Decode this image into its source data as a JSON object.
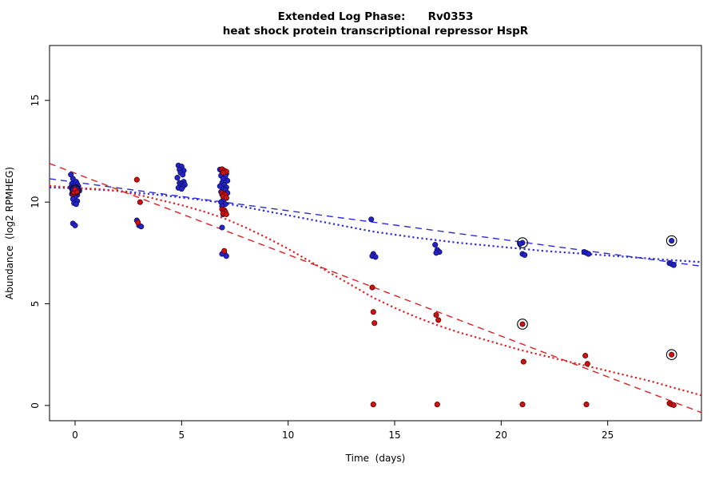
{
  "title": {
    "line1": "Extended Log Phase:      Rv0353",
    "line2": "heat shock protein transcriptional repressor HspR"
  },
  "chart_data": {
    "type": "scatter",
    "xlabel": "Time  (days)",
    "ylabel": "Abundance  (log2 RPMHEG)",
    "xlim": [
      -1.2,
      29.4
    ],
    "ylim": [
      -0.75,
      17.7
    ],
    "x_ticks": [
      0,
      5,
      10,
      15,
      20,
      25
    ],
    "y_ticks": [
      0,
      5,
      10,
      15
    ],
    "grid": false,
    "legend": "none",
    "series": [
      {
        "name": "blue-series",
        "color": "#2424cc",
        "edge": "#10106a",
        "points": [
          [
            -0.2,
            11.35
          ],
          [
            -0.1,
            11.15
          ],
          [
            0.05,
            11.0
          ],
          [
            -0.15,
            10.9
          ],
          [
            0.1,
            10.88
          ],
          [
            -0.05,
            10.82
          ],
          [
            0.15,
            10.78
          ],
          [
            -0.2,
            10.72
          ],
          [
            0.0,
            10.7
          ],
          [
            0.1,
            10.65
          ],
          [
            -0.1,
            10.6
          ],
          [
            0.2,
            10.55
          ],
          [
            -0.05,
            10.5
          ],
          [
            0.05,
            10.45
          ],
          [
            -0.15,
            10.4
          ],
          [
            0.1,
            10.35
          ],
          [
            0.0,
            10.25
          ],
          [
            -0.1,
            10.15
          ],
          [
            0.1,
            10.05
          ],
          [
            -0.05,
            9.95
          ],
          [
            0.05,
            9.9
          ],
          [
            -0.1,
            8.95
          ],
          [
            0.0,
            8.85
          ],
          [
            2.9,
            9.1
          ],
          [
            3.0,
            8.85
          ],
          [
            3.1,
            8.8
          ],
          [
            4.85,
            11.8
          ],
          [
            5.0,
            11.75
          ],
          [
            4.9,
            11.6
          ],
          [
            5.1,
            11.55
          ],
          [
            4.95,
            11.45
          ],
          [
            5.05,
            11.35
          ],
          [
            4.8,
            11.2
          ],
          [
            5.1,
            11.0
          ],
          [
            4.9,
            10.95
          ],
          [
            5.0,
            10.9
          ],
          [
            5.15,
            10.85
          ],
          [
            4.95,
            10.8
          ],
          [
            5.05,
            10.75
          ],
          [
            4.85,
            10.7
          ],
          [
            5.0,
            10.65
          ],
          [
            6.8,
            11.6
          ],
          [
            6.9,
            11.5
          ],
          [
            7.0,
            11.45
          ],
          [
            7.1,
            11.4
          ],
          [
            6.85,
            11.3
          ],
          [
            7.05,
            11.25
          ],
          [
            6.95,
            11.15
          ],
          [
            7.15,
            11.05
          ],
          [
            6.9,
            10.95
          ],
          [
            7.0,
            10.85
          ],
          [
            6.8,
            10.78
          ],
          [
            7.1,
            10.72
          ],
          [
            6.95,
            10.65
          ],
          [
            7.05,
            10.6
          ],
          [
            6.85,
            10.5
          ],
          [
            7.15,
            10.45
          ],
          [
            6.9,
            10.38
          ],
          [
            7.0,
            10.3
          ],
          [
            7.1,
            10.2
          ],
          [
            6.95,
            10.1
          ],
          [
            6.85,
            10.0
          ],
          [
            7.05,
            9.9
          ],
          [
            6.9,
            9.8
          ],
          [
            7.0,
            9.5
          ],
          [
            6.95,
            9.4
          ],
          [
            6.9,
            8.75
          ],
          [
            7.0,
            7.5
          ],
          [
            6.9,
            7.45
          ],
          [
            7.1,
            7.35
          ],
          [
            13.9,
            9.15
          ],
          [
            14.0,
            7.45
          ],
          [
            13.95,
            7.35
          ],
          [
            14.1,
            7.3
          ],
          [
            16.9,
            7.9
          ],
          [
            17.0,
            7.65
          ],
          [
            17.1,
            7.55
          ],
          [
            16.95,
            7.5
          ],
          [
            21.0,
            8.0
          ],
          [
            20.9,
            7.95
          ],
          [
            21.0,
            7.45
          ],
          [
            21.1,
            7.4
          ],
          [
            23.9,
            7.55
          ],
          [
            24.0,
            7.5
          ],
          [
            24.1,
            7.45
          ],
          [
            28.0,
            8.1
          ],
          [
            27.9,
            7.0
          ],
          [
            28.0,
            6.95
          ],
          [
            28.1,
            6.9
          ]
        ]
      },
      {
        "name": "red-series",
        "color": "#cc1414",
        "edge": "#700000",
        "points": [
          [
            0.0,
            10.62
          ],
          [
            0.1,
            10.48
          ],
          [
            -0.1,
            10.42
          ],
          [
            2.9,
            11.1
          ],
          [
            3.05,
            10.0
          ],
          [
            2.95,
            9.0
          ],
          [
            6.9,
            11.62
          ],
          [
            7.0,
            11.55
          ],
          [
            7.1,
            11.5
          ],
          [
            6.95,
            11.45
          ],
          [
            6.9,
            10.45
          ],
          [
            7.0,
            10.4
          ],
          [
            7.05,
            10.35
          ],
          [
            6.95,
            10.28
          ],
          [
            7.1,
            10.22
          ],
          [
            6.9,
            9.65
          ],
          [
            7.0,
            9.6
          ],
          [
            7.05,
            9.52
          ],
          [
            6.95,
            9.45
          ],
          [
            7.1,
            9.4
          ],
          [
            7.0,
            7.6
          ],
          [
            13.95,
            5.8
          ],
          [
            14.0,
            4.6
          ],
          [
            14.05,
            4.05
          ],
          [
            14.0,
            0.05
          ],
          [
            16.95,
            4.45
          ],
          [
            17.05,
            4.2
          ],
          [
            17.0,
            0.05
          ],
          [
            21.0,
            4.0
          ],
          [
            21.05,
            2.15
          ],
          [
            21.0,
            0.05
          ],
          [
            23.95,
            2.45
          ],
          [
            24.05,
            2.05
          ],
          [
            24.0,
            0.05
          ],
          [
            28.0,
            2.5
          ],
          [
            27.9,
            0.1
          ],
          [
            28.0,
            0.05
          ],
          [
            28.1,
            0.02
          ]
        ]
      }
    ],
    "fits": [
      {
        "name": "blue-linear-fit",
        "color": "#2a2ae0",
        "style": "dashed",
        "points": [
          [
            -1.2,
            11.15
          ],
          [
            29.4,
            6.85
          ]
        ]
      },
      {
        "name": "blue-smooth-fit",
        "color": "#2a2ae0",
        "style": "dotted",
        "points": [
          [
            -1.2,
            10.72
          ],
          [
            0,
            10.68
          ],
          [
            2,
            10.55
          ],
          [
            4,
            10.35
          ],
          [
            6,
            10.1
          ],
          [
            7,
            9.95
          ],
          [
            8,
            9.75
          ],
          [
            10,
            9.35
          ],
          [
            12,
            8.95
          ],
          [
            14,
            8.55
          ],
          [
            16,
            8.25
          ],
          [
            18,
            8.0
          ],
          [
            20,
            7.8
          ],
          [
            22,
            7.6
          ],
          [
            24,
            7.45
          ],
          [
            26,
            7.3
          ],
          [
            28,
            7.15
          ],
          [
            29.4,
            7.05
          ]
        ]
      },
      {
        "name": "red-linear-fit",
        "color": "#e02020",
        "style": "dashed",
        "points": [
          [
            -1.2,
            11.9
          ],
          [
            29.4,
            -0.35
          ]
        ]
      },
      {
        "name": "red-smooth-fit",
        "color": "#e02020",
        "style": "dotted",
        "points": [
          [
            -1.2,
            10.8
          ],
          [
            0,
            10.7
          ],
          [
            1,
            10.65
          ],
          [
            2,
            10.55
          ],
          [
            3,
            10.35
          ],
          [
            4,
            10.1
          ],
          [
            5,
            9.85
          ],
          [
            6,
            9.55
          ],
          [
            7,
            9.2
          ],
          [
            8,
            8.75
          ],
          [
            9,
            8.25
          ],
          [
            10,
            7.7
          ],
          [
            11,
            7.1
          ],
          [
            12,
            6.5
          ],
          [
            13,
            5.9
          ],
          [
            14,
            5.3
          ],
          [
            15,
            4.8
          ],
          [
            16,
            4.35
          ],
          [
            17,
            3.95
          ],
          [
            18,
            3.6
          ],
          [
            19,
            3.3
          ],
          [
            20,
            3.0
          ],
          [
            21,
            2.7
          ],
          [
            22,
            2.45
          ],
          [
            23,
            2.2
          ],
          [
            24,
            1.95
          ],
          [
            25,
            1.7
          ],
          [
            26,
            1.45
          ],
          [
            27,
            1.2
          ],
          [
            28,
            0.9
          ],
          [
            29.4,
            0.5
          ]
        ]
      }
    ],
    "highlighted": [
      [
        0,
        10.6
      ],
      [
        21,
        8.0
      ],
      [
        28,
        8.1
      ],
      [
        21,
        4.0
      ],
      [
        28,
        2.5
      ]
    ]
  }
}
